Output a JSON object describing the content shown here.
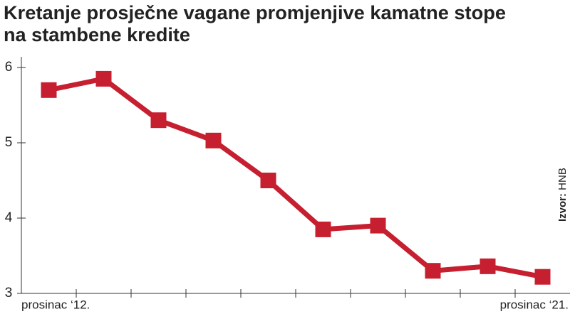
{
  "chart_data": {
    "type": "line",
    "title": [
      "Kretanje prosječne vagane promjenjive kamatne stope",
      "na stambene kredite"
    ],
    "categories": [
      "prosinac ‘12.",
      null,
      null,
      null,
      null,
      null,
      null,
      null,
      null,
      "prosinac ‘21."
    ],
    "values": [
      5.7,
      5.85,
      5.3,
      5.03,
      4.5,
      3.85,
      3.9,
      3.3,
      3.36,
      3.22
    ],
    "color": "#c61f30",
    "ylim": [
      3,
      6.1
    ],
    "yticks": [
      3,
      4,
      5,
      6
    ],
    "source_label": "Izvor:",
    "source": "HNB"
  }
}
